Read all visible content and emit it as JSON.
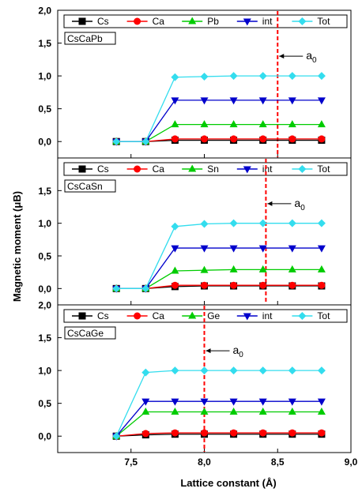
{
  "figure": {
    "xlabel": "Lattice constant (Å)",
    "ylabel": "Magnetic moment (μB)",
    "colors": {
      "Cs": "#000000",
      "Ca": "#ff0000",
      "X": "#00cc00",
      "int": "#0000cc",
      "Tot": "#33ddee",
      "a0_line": "#ff0000"
    }
  },
  "chart_data": [
    {
      "type": "line",
      "panel_label": "CsCaPb",
      "x": [
        7.4,
        7.6,
        7.8,
        8.0,
        8.2,
        8.4,
        8.6,
        8.8
      ],
      "xlim": [
        7.0,
        9.0
      ],
      "ylim": [
        -0.25,
        2.0
      ],
      "yticks": [
        "0,0",
        "0,5",
        "1,0",
        "1,5",
        "2,0"
      ],
      "series": [
        {
          "name": "Cs",
          "values": [
            0,
            0,
            0.02,
            0.02,
            0.02,
            0.02,
            0.02,
            0.02
          ]
        },
        {
          "name": "Ca",
          "values": [
            0,
            0,
            0.04,
            0.04,
            0.04,
            0.04,
            0.04,
            0.04
          ]
        },
        {
          "name": "Pb",
          "values": [
            0,
            0,
            0.26,
            0.26,
            0.26,
            0.26,
            0.26,
            0.26
          ]
        },
        {
          "name": "int",
          "values": [
            0,
            0,
            0.63,
            0.63,
            0.63,
            0.63,
            0.63,
            0.63
          ]
        },
        {
          "name": "Tot",
          "values": [
            0,
            0,
            0.98,
            0.99,
            1.0,
            1.0,
            1.0,
            1.0
          ]
        }
      ],
      "a0": 8.5,
      "a0_label": "a0"
    },
    {
      "type": "line",
      "panel_label": "CsCaSn",
      "x": [
        7.4,
        7.6,
        7.8,
        8.0,
        8.2,
        8.4,
        8.6,
        8.8
      ],
      "xlim": [
        7.0,
        9.0
      ],
      "ylim": [
        -0.25,
        2.0
      ],
      "yticks": [
        "0,0",
        "0,5",
        "1,0",
        "1,5"
      ],
      "series": [
        {
          "name": "Cs",
          "values": [
            0,
            0,
            0.03,
            0.04,
            0.04,
            0.04,
            0.04,
            0.04
          ]
        },
        {
          "name": "Ca",
          "values": [
            0,
            0,
            0.05,
            0.05,
            0.05,
            0.05,
            0.05,
            0.05
          ]
        },
        {
          "name": "Sn",
          "values": [
            0,
            0,
            0.27,
            0.28,
            0.29,
            0.29,
            0.29,
            0.29
          ]
        },
        {
          "name": "int",
          "values": [
            0,
            0,
            0.62,
            0.62,
            0.62,
            0.62,
            0.62,
            0.62
          ]
        },
        {
          "name": "Tot",
          "values": [
            0,
            0,
            0.95,
            0.99,
            1.0,
            1.0,
            1.0,
            1.0
          ]
        }
      ],
      "a0": 8.42,
      "a0_label": "a0"
    },
    {
      "type": "line",
      "panel_label": "CsCaGe",
      "x": [
        7.4,
        7.6,
        7.8,
        8.0,
        8.2,
        8.4,
        8.6,
        8.8
      ],
      "xlim": [
        7.0,
        9.0
      ],
      "ylim": [
        -0.25,
        2.0
      ],
      "yticks": [
        "0,0",
        "0,5",
        "1,0",
        "1,5",
        "2,0"
      ],
      "xticks": [
        "7,5",
        "8,0",
        "8,5",
        "9,0"
      ],
      "series": [
        {
          "name": "Cs",
          "values": [
            0,
            0.02,
            0.03,
            0.03,
            0.03,
            0.03,
            0.03,
            0.03
          ]
        },
        {
          "name": "Ca",
          "values": [
            0,
            0.04,
            0.05,
            0.05,
            0.05,
            0.05,
            0.05,
            0.05
          ]
        },
        {
          "name": "Ge",
          "values": [
            0,
            0.37,
            0.37,
            0.37,
            0.37,
            0.37,
            0.37,
            0.37
          ]
        },
        {
          "name": "int",
          "values": [
            0,
            0.53,
            0.53,
            0.53,
            0.53,
            0.53,
            0.53,
            0.53
          ]
        },
        {
          "name": "Tot",
          "values": [
            0,
            0.97,
            1.0,
            1.0,
            1.0,
            1.0,
            1.0,
            1.0
          ]
        }
      ],
      "a0": 8.0,
      "a0_label": "a0"
    }
  ]
}
